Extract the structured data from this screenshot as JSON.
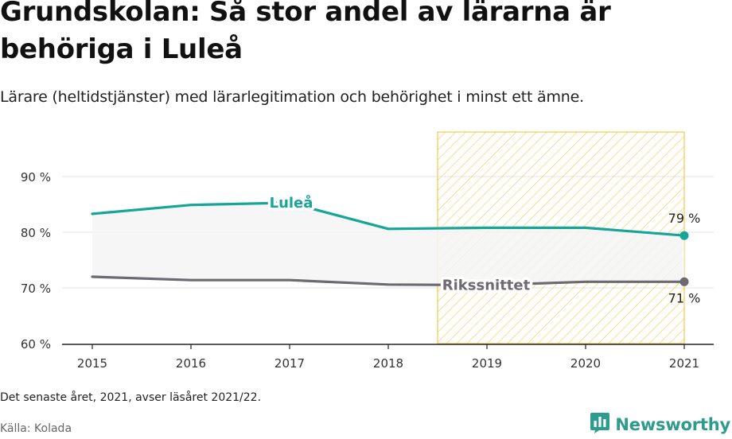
{
  "header": {
    "title": "Grundskolan: Så stor andel av lärarna är behöriga i Luleå",
    "subtitle": "Lärare (heltidstjänster) med lärarlegitimation och behörighet i minst ett ämne."
  },
  "chart_data": {
    "type": "line",
    "categories": [
      "2015",
      "2016",
      "2017",
      "2018",
      "2019",
      "2020",
      "2021"
    ],
    "series": [
      {
        "name": "Luleå",
        "values": [
          83.3,
          84.9,
          85.3,
          80.6,
          80.8,
          80.8,
          79.4
        ],
        "color": "#16a596",
        "end_label": "79 %"
      },
      {
        "name": "Rikssnittet",
        "values": [
          72.0,
          71.4,
          71.4,
          70.6,
          70.5,
          71.1,
          71.1
        ],
        "color": "#6d6a72",
        "end_label": "71 %"
      }
    ],
    "y_ticks": [
      "60 %",
      "70 %",
      "80 %",
      "90 %"
    ],
    "y_tick_values": [
      60,
      70,
      80,
      90
    ],
    "ylim": [
      60,
      98
    ],
    "grid": true,
    "highlight_range": [
      "2019",
      "2021"
    ],
    "highlight_color": "#f5c84c",
    "band_fill": "#f5f5f5"
  },
  "footer": {
    "note": "Det senaste året, 2021, avser läsåret 2021/22.",
    "source": "Källa: Kolada",
    "brand": "Newsworthy",
    "brand_color": "#2d9b8e"
  }
}
